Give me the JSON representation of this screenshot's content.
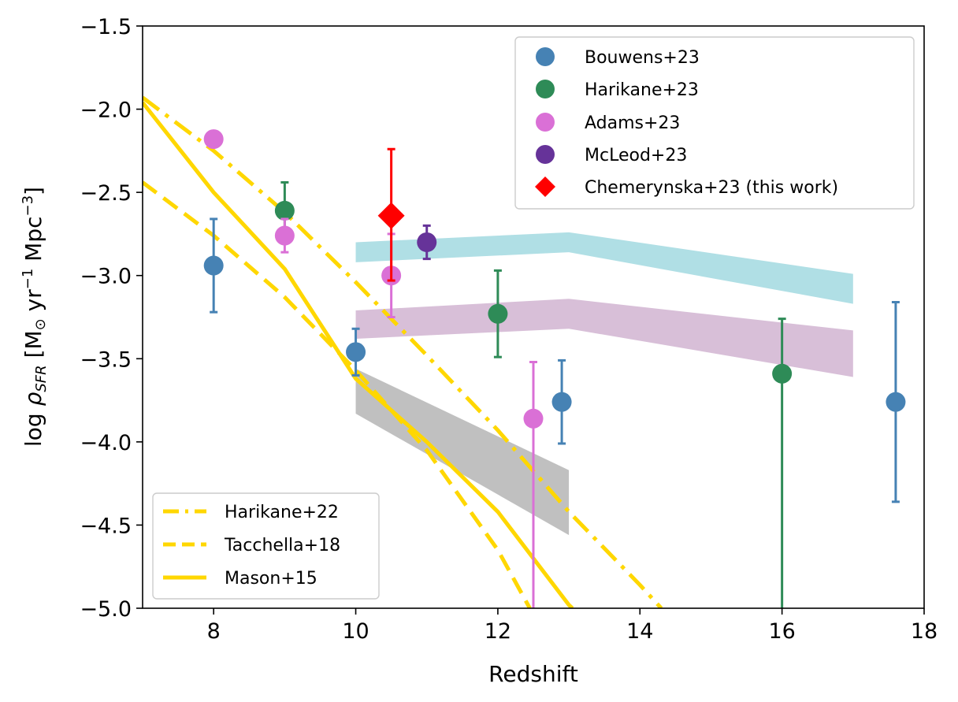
{
  "chart_data": {
    "type": "scatter",
    "xlabel": "Redshift",
    "ylabel": {
      "prefix": "log ",
      "rho": "ρ",
      "sub": "SFR",
      "bracket_open": " [M",
      "sun": "⊙",
      "yr": " yr",
      "exp1": "−1",
      "mpc": " Mpc",
      "exp3": "−3",
      "bracket_close": "]"
    },
    "xlim": [
      7,
      18
    ],
    "ylim": [
      -5.0,
      -1.5
    ],
    "xticks": [
      8,
      10,
      12,
      14,
      16,
      18
    ],
    "yticks": [
      -5.0,
      -4.5,
      -4.0,
      -3.5,
      -3.0,
      -2.5,
      -2.0,
      -1.5
    ],
    "xtick_labels": [
      "8",
      "10",
      "12",
      "14",
      "16",
      "18"
    ],
    "ytick_labels": [
      "−5.0",
      "−4.5",
      "−4.0",
      "−3.5",
      "−3.0",
      "−2.5",
      "−2.0",
      "−1.5"
    ],
    "bands": [
      {
        "name": "cyan-band",
        "color": "#b0dfe5",
        "x": [
          10,
          13,
          17
        ],
        "lower": [
          -2.92,
          -2.86,
          -3.17
        ],
        "upper": [
          -2.8,
          -2.74,
          -2.99
        ]
      },
      {
        "name": "thistle-band",
        "color": "#d8bfd8",
        "x": [
          10,
          13,
          17
        ],
        "lower": [
          -3.38,
          -3.32,
          -3.61
        ],
        "upper": [
          -3.21,
          -3.14,
          -3.33
        ]
      },
      {
        "name": "gray-band",
        "color": "#c0c0c0",
        "x": [
          10,
          13
        ],
        "lower": [
          -3.83,
          -4.56
        ],
        "upper": [
          -3.56,
          -4.17
        ]
      }
    ],
    "lines": [
      {
        "name": "Harikane+22",
        "style": "dashdot",
        "color": "#ffd700",
        "x": [
          7,
          8,
          9,
          10,
          11,
          12,
          13,
          14,
          14.3
        ],
        "y": [
          -1.93,
          -2.25,
          -2.62,
          -3.04,
          -3.48,
          -3.93,
          -4.42,
          -4.86,
          -5.0
        ]
      },
      {
        "name": "Tacchella+18",
        "style": "dashed",
        "color": "#ffd700",
        "x": [
          7,
          8,
          9,
          10,
          11,
          12,
          12.45
        ],
        "y": [
          -2.44,
          -2.76,
          -3.13,
          -3.57,
          -4.05,
          -4.65,
          -5.0
        ]
      },
      {
        "name": "Mason+15",
        "style": "solid",
        "color": "#ffd700",
        "x": [
          7,
          8,
          9,
          10,
          11,
          12,
          13,
          13.05
        ],
        "y": [
          -1.96,
          -2.5,
          -2.96,
          -3.62,
          -4.0,
          -4.42,
          -4.98,
          -5.0
        ]
      }
    ],
    "series": [
      {
        "name": "Bouwens+23",
        "color": "#4682b4",
        "marker": "circle",
        "points": [
          {
            "x": 8.0,
            "y": -2.94,
            "yerr_low": 0.28,
            "yerr_high": 0.28
          },
          {
            "x": 10.0,
            "y": -3.46,
            "yerr_low": 0.14,
            "yerr_high": 0.14
          },
          {
            "x": 12.9,
            "y": -3.76,
            "yerr_low": 0.25,
            "yerr_high": 0.25
          },
          {
            "x": 17.6,
            "y": -3.76,
            "yerr_low": 0.6,
            "yerr_high": 0.6
          }
        ]
      },
      {
        "name": "Harikane+23",
        "color": "#2e8b57",
        "marker": "circle",
        "points": [
          {
            "x": 9.0,
            "y": -2.61,
            "yerr_low": 0.16,
            "yerr_high": 0.17
          },
          {
            "x": 12.0,
            "y": -3.23,
            "yerr_low": 0.26,
            "yerr_high": 0.26
          },
          {
            "x": 16.0,
            "y": -3.59,
            "yerr_low": 1.5,
            "yerr_high": 0.33
          }
        ]
      },
      {
        "name": "Adams+23",
        "color": "#da70d6",
        "marker": "circle",
        "points": [
          {
            "x": 8.0,
            "y": -2.18,
            "yerr_low": 0.0,
            "yerr_high": 0.0
          },
          {
            "x": 9.0,
            "y": -2.76,
            "yerr_low": 0.1,
            "yerr_high": 0.1
          },
          {
            "x": 10.5,
            "y": -3.0,
            "yerr_low": 0.25,
            "yerr_high": 0.25
          },
          {
            "x": 12.5,
            "y": -3.86,
            "yerr_low": 1.2,
            "yerr_high": 0.34
          }
        ]
      },
      {
        "name": "McLeod+23",
        "color": "#663399",
        "marker": "circle",
        "points": [
          {
            "x": 11.0,
            "y": -2.8,
            "yerr_low": 0.1,
            "yerr_high": 0.1
          }
        ]
      },
      {
        "name": "Chemerynska+23 (this work)",
        "color": "#ff0000",
        "marker": "diamond",
        "points": [
          {
            "x": 10.5,
            "y": -2.64,
            "yerr_low": 0.39,
            "yerr_high": 0.4
          }
        ]
      }
    ],
    "legend_points": {
      "position": "upper right",
      "entries": [
        "Bouwens+23",
        "Harikane+23",
        "Adams+23",
        "McLeod+23",
        "Chemerynska+23 (this work)"
      ]
    },
    "legend_lines": {
      "position": "lower left",
      "entries": [
        "Harikane+22",
        "Tacchella+18",
        "Mason+15"
      ]
    }
  }
}
